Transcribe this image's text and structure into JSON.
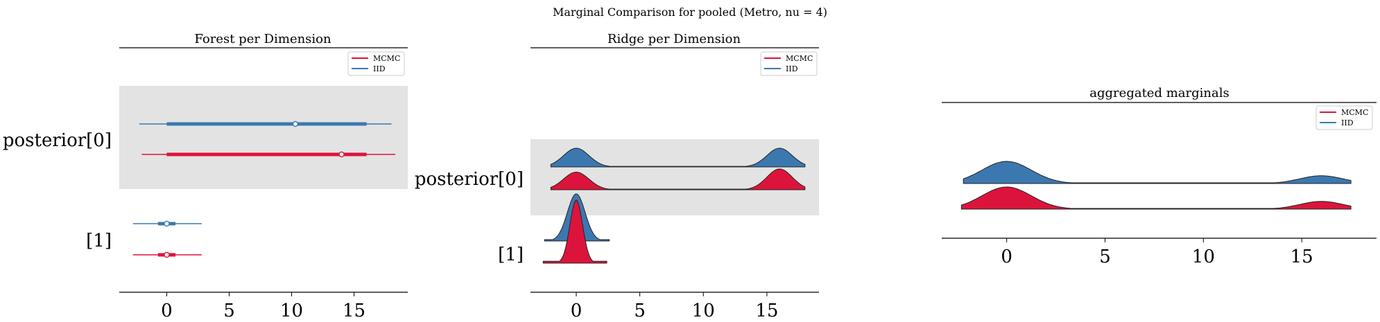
{
  "suptitle": "Marginal Comparison for pooled (Metro, nu = 4)",
  "colors": {
    "mcmc": "#dc143c",
    "iid": "#3c78b0",
    "shade": "#e3e3e3",
    "edge": "#222222"
  },
  "legend": {
    "mcmc": "MCMC",
    "iid": "IID"
  },
  "chart_data": [
    {
      "type": "forest",
      "title": "Forest per Dimension",
      "xlim": [
        -3.8,
        19.3
      ],
      "xticks": [
        0,
        5,
        10,
        15
      ],
      "ylabels": [
        "posterior[0]",
        "[1]"
      ],
      "legend_placement": "top-right",
      "series": [
        {
          "name": "IID",
          "rows": [
            {
              "label": "posterior[0]",
              "hdi_low": -2.2,
              "q_low": 0.0,
              "median": 10.3,
              "q_high": 16.0,
              "hdi_high": 18.0
            },
            {
              "label": "[1]",
              "hdi_low": -2.7,
              "q_low": -0.7,
              "median": 0.0,
              "q_high": 0.7,
              "hdi_high": 2.8
            }
          ]
        },
        {
          "name": "MCMC",
          "rows": [
            {
              "label": "posterior[0]",
              "hdi_low": -2.0,
              "q_low": 0.0,
              "median": 14.0,
              "q_high": 16.0,
              "hdi_high": 18.3
            },
            {
              "label": "[1]",
              "hdi_low": -2.7,
              "q_low": -0.7,
              "median": 0.0,
              "q_high": 0.7,
              "hdi_high": 2.8
            }
          ]
        }
      ]
    },
    {
      "type": "ridge",
      "title": "Ridge per Dimension",
      "xlim": [
        -3.6,
        19.1
      ],
      "xticks": [
        0,
        5,
        10,
        15
      ],
      "ylabels": [
        "posterior[0]",
        "[1]"
      ],
      "legend_placement": "top-right",
      "series": [
        {
          "name": "IID",
          "rows": [
            {
              "label": "posterior[0]",
              "range": [
                -2.0,
                18.0
              ],
              "modes": [
                {
                  "mu": 0.0,
                  "sigma": 1.0,
                  "w": 1.0
                },
                {
                  "mu": 16.0,
                  "sigma": 1.0,
                  "w": 1.0
                }
              ]
            },
            {
              "label": "[1]",
              "range": [
                -2.5,
                2.6
              ],
              "modes": [
                {
                  "mu": 0.0,
                  "sigma": 0.7,
                  "w": 1.0
                }
              ]
            }
          ]
        },
        {
          "name": "MCMC",
          "rows": [
            {
              "label": "posterior[0]",
              "range": [
                -2.0,
                18.0
              ],
              "modes": [
                {
                  "mu": 0.0,
                  "sigma": 1.0,
                  "w": 0.85
                },
                {
                  "mu": 16.0,
                  "sigma": 1.0,
                  "w": 1.0
                }
              ]
            },
            {
              "label": "[1]",
              "range": [
                -2.6,
                2.4
              ],
              "modes": [
                {
                  "mu": 0.0,
                  "sigma": 0.5,
                  "w": 1.0
                }
              ]
            }
          ]
        }
      ]
    },
    {
      "type": "ridge",
      "title": "aggregated marginals",
      "xlim": [
        -3.3,
        18.8
      ],
      "xticks": [
        0,
        5,
        10,
        15
      ],
      "ylabels": [],
      "legend_placement": "top-right",
      "series": [
        {
          "name": "IID",
          "range": [
            -2.2,
            17.5
          ],
          "modes": [
            {
              "mu": 0.0,
              "sigma": 1.25,
              "w": 1.0
            },
            {
              "mu": 16.0,
              "sigma": 1.1,
              "w": 0.35
            }
          ]
        },
        {
          "name": "MCMC",
          "range": [
            -2.3,
            17.5
          ],
          "modes": [
            {
              "mu": 0.0,
              "sigma": 1.25,
              "w": 1.0
            },
            {
              "mu": 16.0,
              "sigma": 1.1,
              "w": 0.35
            }
          ]
        }
      ]
    }
  ]
}
